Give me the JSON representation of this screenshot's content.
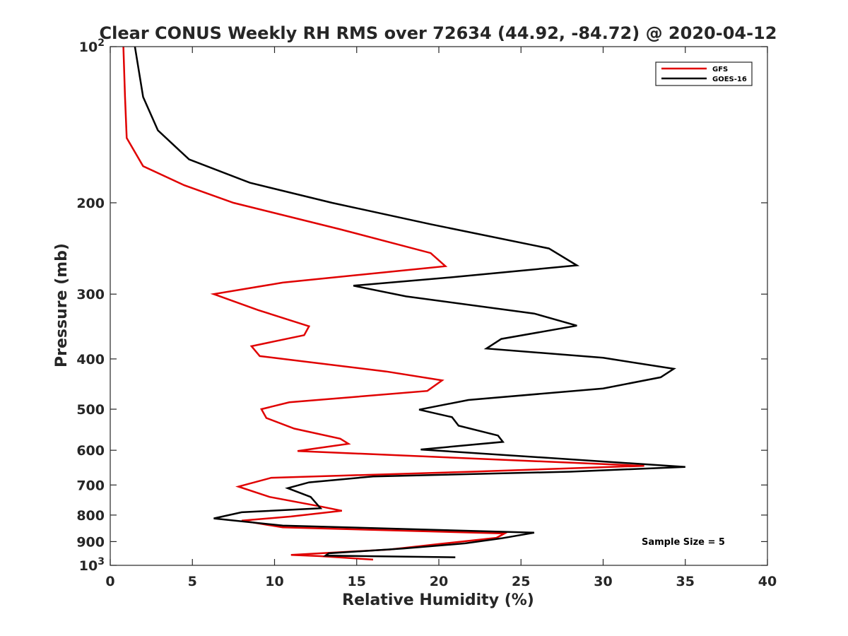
{
  "chart_data": {
    "type": "line",
    "title": "Clear CONUS Weekly RH RMS over 72634 (44.92, -84.72) @ 2020-04-12",
    "xlabel": "Relative Humidity (%)",
    "ylabel": "Pressure (mb)",
    "xlim": [
      0,
      40
    ],
    "ylim": [
      100,
      1000
    ],
    "yscale": "log",
    "yreversed": true,
    "x_ticks": [
      0,
      5,
      10,
      15,
      20,
      25,
      30,
      35,
      40
    ],
    "x_tick_labels": [
      "0",
      "5",
      "10",
      "15",
      "20",
      "25",
      "30",
      "35",
      "40"
    ],
    "y_ticks": [
      100,
      200,
      300,
      400,
      500,
      600,
      700,
      800,
      900,
      1000
    ],
    "y_tick_labels": [
      {
        "base": "10",
        "exp": "2"
      },
      {
        "text": "200"
      },
      {
        "text": "300"
      },
      {
        "text": "400"
      },
      {
        "text": "500"
      },
      {
        "text": "600"
      },
      {
        "text": "700"
      },
      {
        "text": "800"
      },
      {
        "text": "900"
      },
      {
        "base": "10",
        "exp": "3"
      }
    ],
    "legend_position": "top-right",
    "annotation": "Sample Size = 5",
    "series": [
      {
        "name": "GFS",
        "color": "#e00000",
        "points": [
          [
            0.8,
            100
          ],
          [
            0.9,
            125
          ],
          [
            1.0,
            150
          ],
          [
            2.0,
            170
          ],
          [
            4.5,
            185
          ],
          [
            7.5,
            200
          ],
          [
            14,
            225
          ],
          [
            19.5,
            250
          ],
          [
            20.4,
            265
          ],
          [
            10.5,
            285
          ],
          [
            6.3,
            300
          ],
          [
            9.0,
            322
          ],
          [
            12.1,
            346
          ],
          [
            11.8,
            360
          ],
          [
            8.6,
            378
          ],
          [
            9.1,
            395
          ],
          [
            16.8,
            423
          ],
          [
            20.2,
            440
          ],
          [
            19.3,
            461
          ],
          [
            10.9,
            485
          ],
          [
            9.2,
            500
          ],
          [
            9.5,
            520
          ],
          [
            11.2,
            545
          ],
          [
            14.0,
            570
          ],
          [
            14.5,
            583
          ],
          [
            11.4,
            602
          ],
          [
            32.5,
            643
          ],
          [
            22,
            660
          ],
          [
            9.8,
            678
          ],
          [
            7.8,
            705
          ],
          [
            9.7,
            738
          ],
          [
            12.8,
            770
          ],
          [
            14.1,
            785
          ],
          [
            11.0,
            805
          ],
          [
            8.0,
            820
          ],
          [
            10.5,
            845
          ],
          [
            24,
            868
          ],
          [
            23.5,
            885
          ],
          [
            20.0,
            910
          ],
          [
            17.0,
            932
          ],
          [
            11.0,
            955
          ],
          [
            12.8,
            960
          ],
          [
            16.0,
            975
          ]
        ]
      },
      {
        "name": "GOES-16",
        "color": "#000000",
        "points": [
          [
            1.5,
            100
          ],
          [
            2.0,
            125
          ],
          [
            2.9,
            145
          ],
          [
            4.8,
            165
          ],
          [
            8.5,
            183
          ],
          [
            13.5,
            200
          ],
          [
            19.5,
            220
          ],
          [
            26.7,
            245
          ],
          [
            28.4,
            264
          ],
          [
            21.0,
            278
          ],
          [
            14.8,
            289
          ],
          [
            18.0,
            303
          ],
          [
            25.8,
            327
          ],
          [
            28.4,
            345
          ],
          [
            23.8,
            366
          ],
          [
            22.9,
            382
          ],
          [
            30.0,
            398
          ],
          [
            34.3,
            418
          ],
          [
            33.5,
            434
          ],
          [
            30.0,
            456
          ],
          [
            21.8,
            480
          ],
          [
            18.8,
            501
          ],
          [
            20.8,
            518
          ],
          [
            21.2,
            538
          ],
          [
            23.6,
            562
          ],
          [
            23.9,
            578
          ],
          [
            18.9,
            598
          ],
          [
            35.0,
            646
          ],
          [
            28.0,
            660
          ],
          [
            16.0,
            674
          ],
          [
            12.1,
            692
          ],
          [
            10.8,
            710
          ],
          [
            12.2,
            738
          ],
          [
            12.8,
            776
          ],
          [
            8.0,
            790
          ],
          [
            6.3,
            812
          ],
          [
            10.5,
            838
          ],
          [
            25.8,
            865
          ],
          [
            23.8,
            887
          ],
          [
            21.6,
            907
          ],
          [
            17.8,
            928
          ],
          [
            13.3,
            948
          ],
          [
            13.1,
            958
          ],
          [
            21.0,
            965
          ]
        ]
      }
    ]
  }
}
